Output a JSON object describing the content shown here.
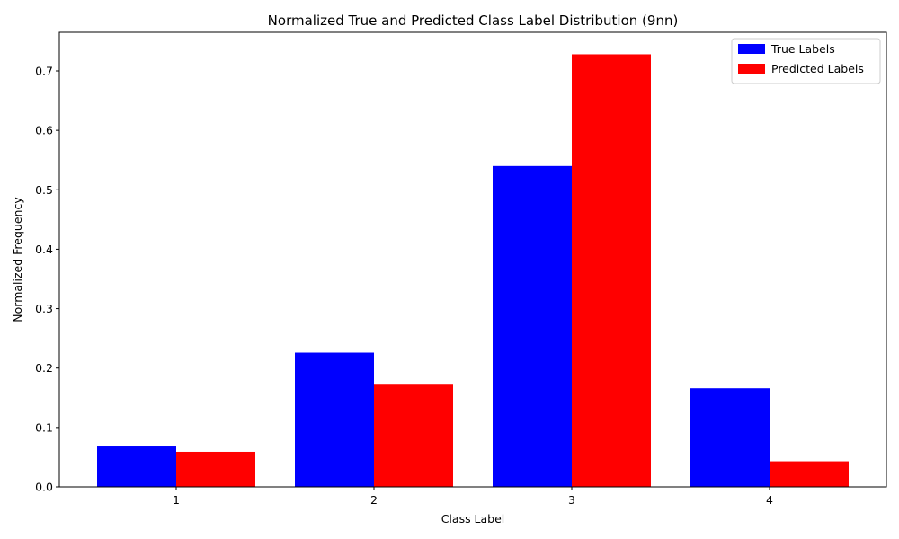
{
  "chart_data": {
    "type": "bar",
    "title": "Normalized True and Predicted Class Label Distribution (9nn)",
    "xlabel": "Class Label",
    "ylabel": "Normalized Frequency",
    "categories": [
      "1",
      "2",
      "3",
      "4"
    ],
    "series": [
      {
        "name": "True Labels",
        "color": "#0000ff",
        "values": [
          0.068,
          0.226,
          0.54,
          0.166
        ]
      },
      {
        "name": "Predicted Labels",
        "color": "#ff0000",
        "values": [
          0.059,
          0.172,
          0.728,
          0.043
        ]
      }
    ],
    "ylim": [
      0,
      0.765
    ],
    "yticks": [
      0.0,
      0.1,
      0.2,
      0.3,
      0.4,
      0.5,
      0.6,
      0.7
    ],
    "ytick_labels": [
      "0.0",
      "0.1",
      "0.2",
      "0.3",
      "0.4",
      "0.5",
      "0.6",
      "0.7"
    ],
    "grid": false,
    "legend_position": "top-right"
  }
}
